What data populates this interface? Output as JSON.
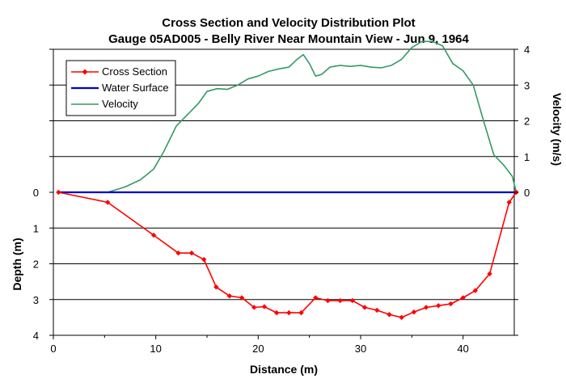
{
  "chart_data": {
    "type": "line",
    "title": "Cross Section and Velocity Distribution Plot",
    "subtitle": "Gauge 05AD005 - Belly River Near Mountain View - Jun 9, 1964",
    "xlabel": "Distance (m)",
    "ylabel_left": "Depth (m)",
    "ylabel_right": "Velocity (m/s)",
    "xlim": [
      0,
      45
    ],
    "x_ticks": [
      "0",
      "10",
      "20",
      "30",
      "40"
    ],
    "depth_ticks": [
      "0",
      "1",
      "2",
      "3",
      "4"
    ],
    "velocity_ticks": [
      "0",
      "1",
      "2",
      "3",
      "4"
    ],
    "depth_range": [
      0,
      4
    ],
    "velocity_range": [
      0,
      4
    ],
    "legend_position": "top-left",
    "grid": "horizontal",
    "series": [
      {
        "name": "Cross Section",
        "color": "#ff0000",
        "axis": "depth",
        "marker": "diamond",
        "x": [
          0.5,
          5.3,
          9.8,
          12.2,
          13.5,
          14.7,
          15.9,
          17.2,
          18.4,
          19.6,
          20.6,
          21.8,
          23.0,
          24.2,
          25.6,
          26.8,
          28.0,
          29.2,
          30.4,
          31.6,
          32.8,
          34.0,
          35.2,
          36.4,
          37.6,
          38.8,
          40.0,
          41.2,
          42.6,
          44.5,
          45.2
        ],
        "y": [
          0.0,
          0.28,
          1.2,
          1.7,
          1.7,
          1.88,
          2.65,
          2.9,
          2.95,
          3.22,
          3.2,
          3.37,
          3.37,
          3.37,
          2.95,
          3.03,
          3.03,
          3.03,
          3.22,
          3.3,
          3.42,
          3.5,
          3.35,
          3.22,
          3.17,
          3.12,
          2.95,
          2.75,
          2.28,
          0.28,
          0.0
        ]
      },
      {
        "name": "Water Surface",
        "color": "#0000cc",
        "axis": "depth",
        "x": [
          0.5,
          45.2
        ],
        "y": [
          0.0,
          0.0
        ]
      },
      {
        "name": "Velocity",
        "color": "#339966",
        "axis": "velocity",
        "x": [
          5.3,
          7.0,
          8.5,
          9.8,
          10.8,
          12.0,
          13.2,
          14.2,
          15.0,
          16.0,
          17.0,
          18.0,
          19.0,
          20.0,
          21.0,
          22.0,
          23.0,
          23.8,
          24.4,
          25.0,
          25.6,
          26.2,
          27.0,
          28.0,
          29.0,
          30.0,
          31.0,
          32.0,
          33.0,
          34.0,
          35.0,
          36.0,
          37.0,
          38.0,
          39.0,
          40.0,
          41.0,
          42.0,
          43.0,
          44.0,
          44.8,
          45.2
        ],
        "y": [
          0.0,
          0.15,
          0.35,
          0.65,
          1.15,
          1.85,
          2.2,
          2.5,
          2.82,
          2.9,
          2.88,
          3.0,
          3.17,
          3.25,
          3.38,
          3.45,
          3.5,
          3.72,
          3.85,
          3.6,
          3.25,
          3.3,
          3.5,
          3.55,
          3.52,
          3.55,
          3.5,
          3.48,
          3.55,
          3.72,
          4.05,
          4.22,
          4.22,
          4.1,
          3.6,
          3.4,
          3.0,
          2.0,
          1.05,
          0.75,
          0.45,
          0.0
        ]
      }
    ]
  }
}
